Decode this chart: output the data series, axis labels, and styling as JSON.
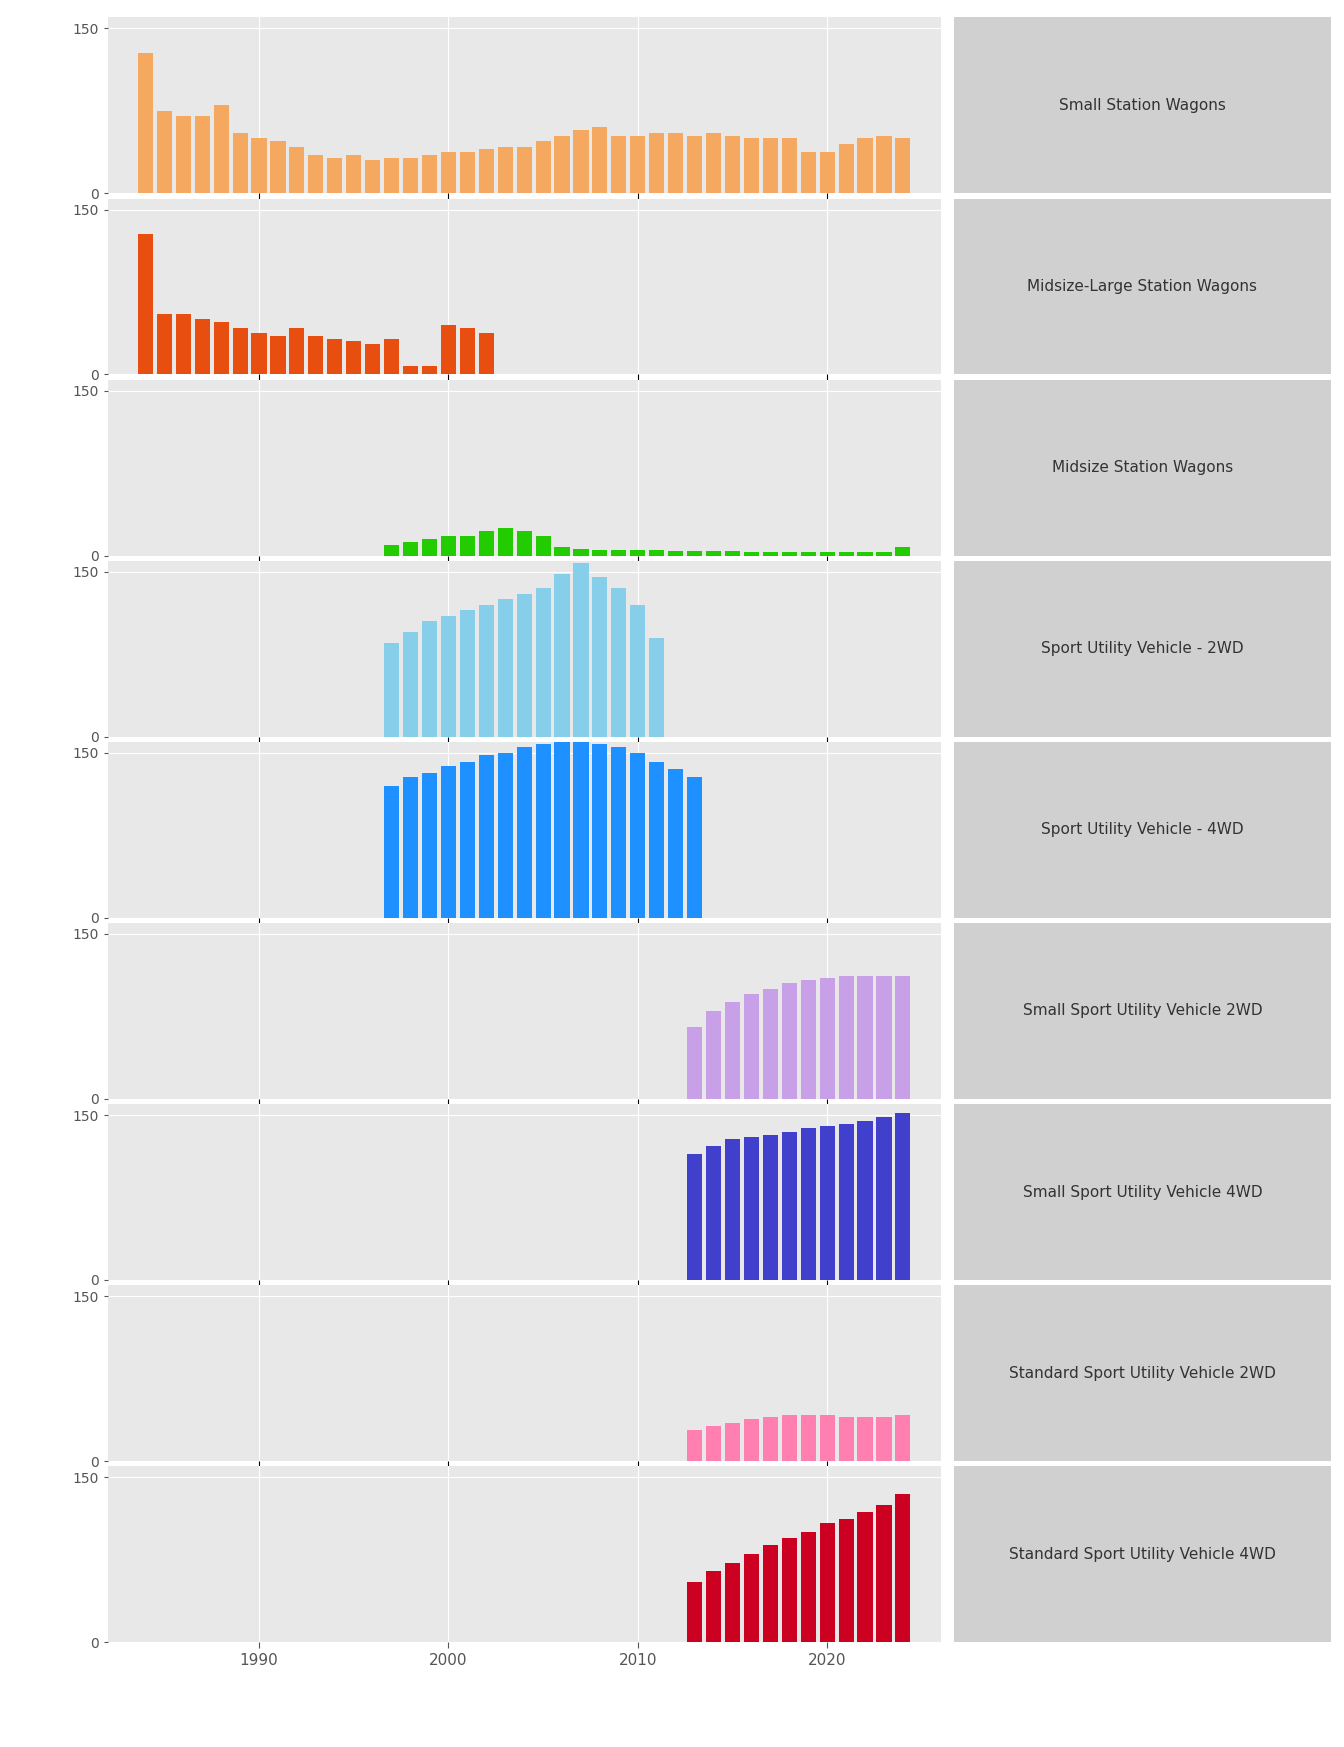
{
  "panels": [
    {
      "label": "Small Station Wagons",
      "color": "#F4A860",
      "years": [
        1984,
        1985,
        1986,
        1987,
        1988,
        1989,
        1990,
        1991,
        1992,
        1993,
        1994,
        1995,
        1996,
        1997,
        1998,
        1999,
        2000,
        2001,
        2002,
        2003,
        2004,
        2005,
        2006,
        2007,
        2008,
        2009,
        2010,
        2011,
        2012,
        2013,
        2014,
        2015,
        2016,
        2017,
        2018,
        2019,
        2020,
        2021,
        2022,
        2023,
        2024
      ],
      "values": [
        128,
        75,
        70,
        70,
        80,
        55,
        50,
        48,
        42,
        35,
        32,
        35,
        30,
        32,
        32,
        35,
        38,
        38,
        40,
        42,
        42,
        48,
        52,
        58,
        60,
        52,
        52,
        55,
        55,
        52,
        55,
        52,
        50,
        50,
        50,
        38,
        38,
        45,
        50,
        52,
        50
      ]
    },
    {
      "label": "Midsize-Large Station Wagons",
      "color": "#E84E0F",
      "years": [
        1984,
        1985,
        1986,
        1987,
        1988,
        1989,
        1990,
        1991,
        1992,
        1993,
        1994,
        1995,
        1996,
        1997,
        1998,
        1999,
        2000,
        2001,
        2002,
        2003,
        2004,
        2005
      ],
      "values": [
        128,
        55,
        55,
        50,
        48,
        42,
        38,
        35,
        42,
        35,
        32,
        30,
        28,
        32,
        8,
        8,
        45,
        42,
        38,
        0,
        0,
        0
      ]
    },
    {
      "label": "Midsize Station Wagons",
      "color": "#22CC00",
      "years": [
        1997,
        1998,
        1999,
        2000,
        2001,
        2002,
        2003,
        2004,
        2005,
        2006,
        2007,
        2008,
        2009,
        2010,
        2011,
        2012,
        2013,
        2014,
        2015,
        2016,
        2017,
        2018,
        2019,
        2020,
        2021,
        2022,
        2023,
        2024
      ],
      "values": [
        10,
        12,
        15,
        18,
        18,
        22,
        25,
        22,
        18,
        8,
        6,
        5,
        5,
        5,
        5,
        4,
        4,
        4,
        4,
        3,
        3,
        3,
        3,
        3,
        3,
        3,
        3,
        8
      ]
    },
    {
      "label": "Sport Utility Vehicle - 2WD",
      "color": "#87CEEB",
      "years": [
        1997,
        1998,
        1999,
        2000,
        2001,
        2002,
        2003,
        2004,
        2005,
        2006,
        2007,
        2008,
        2009,
        2010,
        2011
      ],
      "values": [
        85,
        95,
        105,
        110,
        115,
        120,
        125,
        130,
        135,
        148,
        158,
        145,
        135,
        120,
        90
      ]
    },
    {
      "label": "Sport Utility Vehicle - 4WD",
      "color": "#1E90FF",
      "years": [
        1997,
        1998,
        1999,
        2000,
        2001,
        2002,
        2003,
        2004,
        2005,
        2006,
        2007,
        2008,
        2009,
        2010,
        2011,
        2012,
        2013
      ],
      "values": [
        120,
        128,
        132,
        138,
        142,
        148,
        150,
        155,
        158,
        160,
        160,
        158,
        155,
        150,
        142,
        135,
        128
      ]
    },
    {
      "label": "Small Sport Utility Vehicle 2WD",
      "color": "#C8A0E8",
      "years": [
        2013,
        2014,
        2015,
        2016,
        2017,
        2018,
        2019,
        2020,
        2021,
        2022,
        2023,
        2024
      ],
      "values": [
        65,
        80,
        88,
        95,
        100,
        105,
        108,
        110,
        112,
        112,
        112,
        112
      ]
    },
    {
      "label": "Small Sport Utility Vehicle 4WD",
      "color": "#4040CC",
      "years": [
        2013,
        2014,
        2015,
        2016,
        2017,
        2018,
        2019,
        2020,
        2021,
        2022,
        2023,
        2024
      ],
      "values": [
        115,
        122,
        128,
        130,
        132,
        135,
        138,
        140,
        142,
        145,
        148,
        152
      ]
    },
    {
      "label": "Standard Sport Utility Vehicle 2WD",
      "color": "#FF80B0",
      "years": [
        2013,
        2014,
        2015,
        2016,
        2017,
        2018,
        2019,
        2020,
        2021,
        2022,
        2023,
        2024
      ],
      "values": [
        28,
        32,
        35,
        38,
        40,
        42,
        42,
        42,
        40,
        40,
        40,
        42
      ]
    },
    {
      "label": "Standard Sport Utility Vehicle 4WD",
      "color": "#CC0020",
      "years": [
        2013,
        2014,
        2015,
        2016,
        2017,
        2018,
        2019,
        2020,
        2021,
        2022,
        2023,
        2024
      ],
      "values": [
        55,
        65,
        72,
        80,
        88,
        95,
        100,
        108,
        112,
        118,
        125,
        135
      ]
    }
  ],
  "xlim": [
    1982,
    2026
  ],
  "ylim": [
    0,
    160
  ],
  "yticks": [
    0,
    150
  ],
  "xticks": [
    1990,
    2000,
    2010,
    2020
  ],
  "panel_bg": "#E8E8E8",
  "figure_bg": "#FFFFFF",
  "label_area_color": "#D0D0D0",
  "bar_width": 0.8
}
